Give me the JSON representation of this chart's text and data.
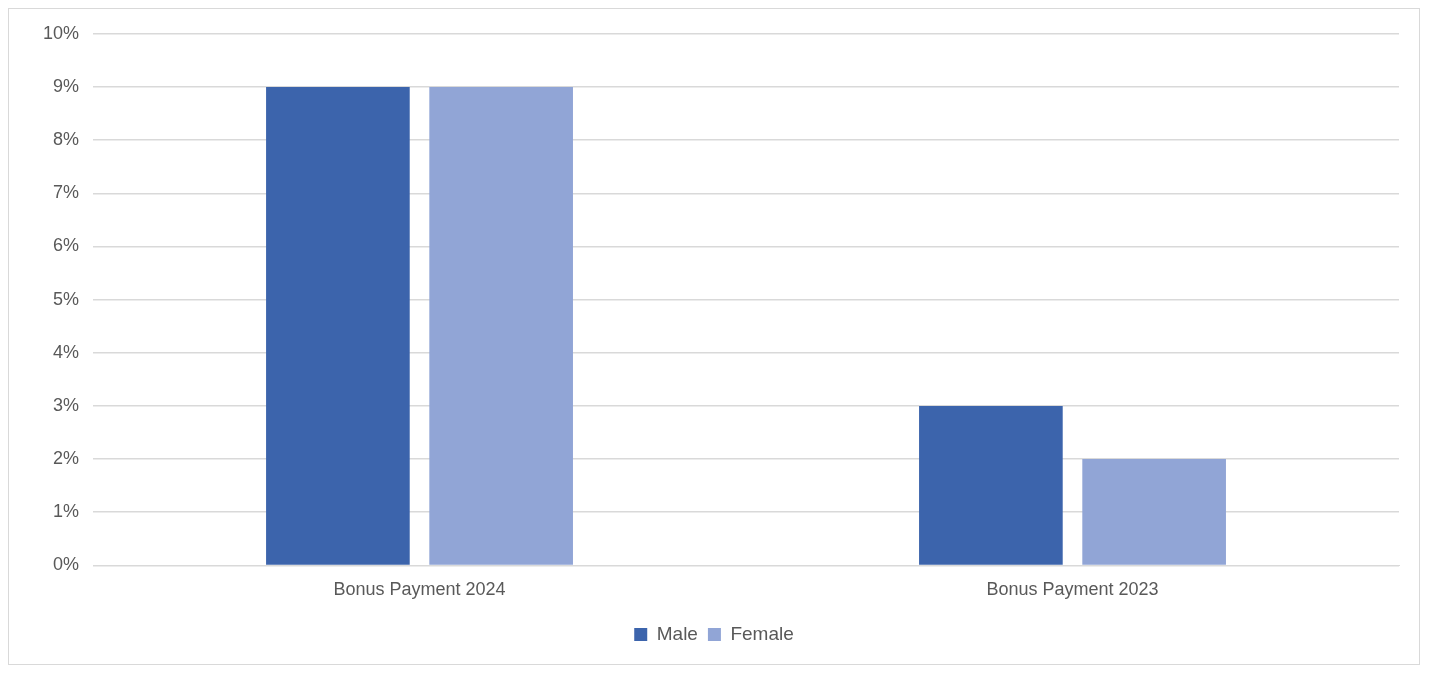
{
  "chart_data": {
    "type": "bar",
    "categories": [
      "Bonus Payment 2024",
      "Bonus Payment 2023"
    ],
    "series": [
      {
        "name": "Male",
        "color": "#3c64ac",
        "values": [
          9,
          3
        ]
      },
      {
        "name": "Female",
        "color": "#91a5d6",
        "values": [
          9,
          2
        ]
      }
    ],
    "ylim": [
      0,
      10
    ],
    "yticks": [
      {
        "value": 0,
        "label": "0%"
      },
      {
        "value": 1,
        "label": "1%"
      },
      {
        "value": 2,
        "label": "2%"
      },
      {
        "value": 3,
        "label": "3%"
      },
      {
        "value": 4,
        "label": "4%"
      },
      {
        "value": 5,
        "label": "5%"
      },
      {
        "value": 6,
        "label": "6%"
      },
      {
        "value": 7,
        "label": "7%"
      },
      {
        "value": 8,
        "label": "8%"
      },
      {
        "value": 9,
        "label": "9%"
      },
      {
        "value": 10,
        "label": "10%"
      }
    ],
    "grid": "y",
    "legend": "bottom"
  }
}
